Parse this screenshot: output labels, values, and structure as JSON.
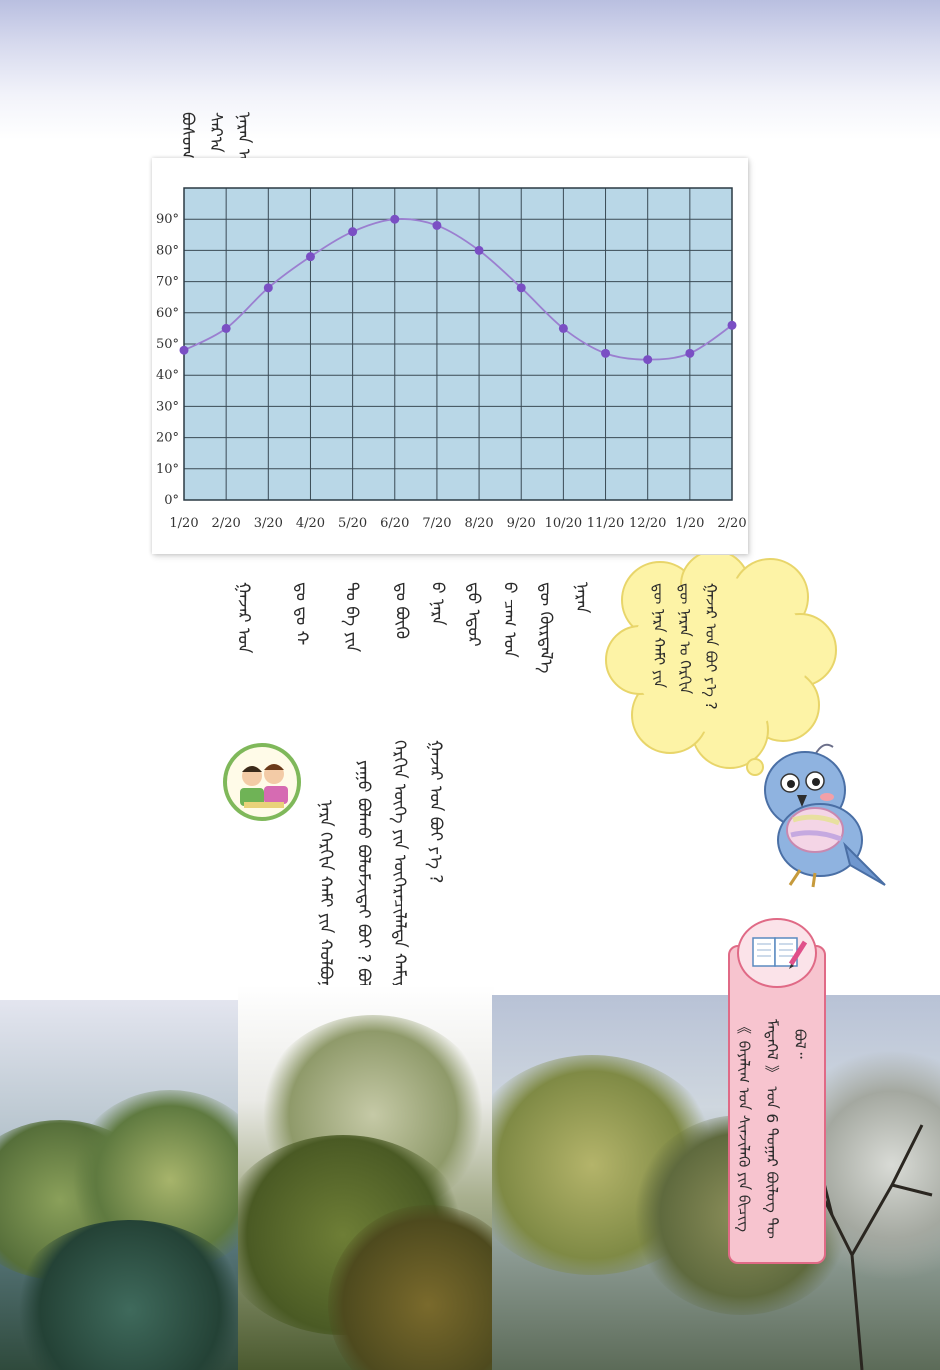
{
  "chart_data": {
    "type": "line",
    "title": "",
    "xlabel": "",
    "ylabel": "",
    "categories": [
      "1/20",
      "2/20",
      "3/20",
      "4/20",
      "5/20",
      "6/20",
      "7/20",
      "8/20",
      "9/20",
      "10/20",
      "11/20",
      "12/20",
      "1/20",
      "2/20"
    ],
    "y_ticks": [
      "0°",
      "10°",
      "20°",
      "30°",
      "40°",
      "50°",
      "60°",
      "70°",
      "80°",
      "90°"
    ],
    "ylim": [
      0,
      100
    ],
    "grid": true,
    "series": [
      {
        "name": "",
        "values": [
          48,
          55,
          68,
          78,
          86,
          90,
          88,
          80,
          68,
          55,
          47,
          45,
          47,
          56
        ]
      }
    ],
    "colors": {
      "plot_bg": "#b9d7e7",
      "grid": "#3a4a55",
      "line": "#9b7fd0",
      "marker": "#7a4fc4"
    }
  },
  "text": {
    "chart_caption": [
      "ᠪᠣᠰᠤᠭ᠎ᠠ",
      "ᠰᠠᠷ᠎ᠠ ᠪᠣᠯ",
      "ᠨᠠᠷᠠᠨ ᠤ"
    ],
    "body": [
      "ᠨᠠᠷᠠᠨ",
      "ᠳᠦ ᠬᠦᠷᠲᠡᠯ᠎ᠡ",
      "ᠪ ᠴᠠᠭ ᠤᠨ",
      "ᠳ᠋ᠤ ᠡᠳᠦᠷ",
      "ᠪ ᠨᠠᠷᠠ",
      "ᠳᠤ ᠪᠦᠬᠦ",
      "ᠲᠤ ᠪᠠ ᠶᠢᠨ",
      "ᠳᠤ ᠳᠤ ᠬ",
      "ᠭᠠᠵᠠᠷ ᠤᠨ"
    ],
    "questions": [
      "ᠭᠠᠵᠠᠷ ᠤᠨ ᠪᠣᠢ ᠶ᠎ᠡ ?",
      "ᠬᠡᠷᠬᠢᠨ ᠥᠭᠡ ᠶᠢᠨ ᠥᠭᠡᠷᠡᠴᠢᠯᠡᠯᠲᠡ ᠬᠠᠮᠢᠶᠠᠷᠤᠯᠲᠠ",
      "ᠶᠠᠭᠤ ᠪᠣᠯᠬᠤ ᠪᠣᠯᠣᠮᠵᠢᠲᠠᠢ ᠪᠣᠢ ? ᠪᠣᠯᠣᠨ",
      "ᠨᠠᠷᠠ ᠬᠡᠷᠬᠢᠨ ᠬᠠᠮᠢ ᠶᠢᠨ ᠬᠣᠯᠪᠣᠭᠠᠲᠠᠢ ᠪ"
    ],
    "bubble": [
      "ᠭᠠᠵᠠᠷ ᠤᠨ ᠪᠣᠢ ᠶ᠎ᠡ ?",
      "ᠳᠦ ᠨᠠᠷᠠᠨ ᠤ ᠬᠡᠷᠬᠢᠨ",
      "ᠳᠦ ᠨᠠᠷᠠ ᠬᠠᠮᠢ ᠶᠢᠨ"
    ],
    "note": [
      "ᠪᠣᠯ᠃",
      "ᠮᠡᠳᠡᠭᠡᠯ 》 ᠤᠨ 6 ᠳᠤᠭᠠᠷ ᠪᠦᠯᠦᠭ ᠲᠦ",
      "《 ᠪᠠᠶᠠᠯᠢᠭ ᠤᠨ ᠰᠢᠨᠵᠢᠯᠡᠬᠦ ᠶᠢᠨ ᠪᠢᠴᠢᠭ"
    ]
  }
}
